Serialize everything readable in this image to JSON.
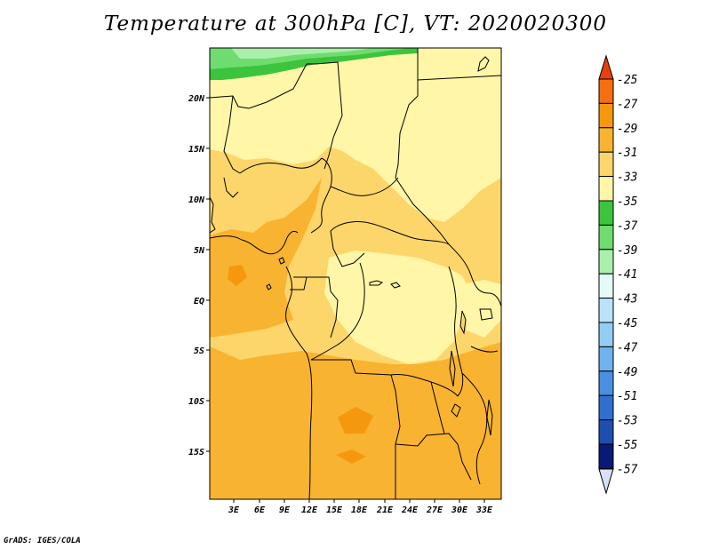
{
  "title": "Temperature at 300hPa [C], VT: 2020020300",
  "credit": "GrADS: IGES/COLA",
  "map": {
    "lat_labels": [
      "20N",
      "15N",
      "10N",
      "5N",
      "EQ",
      "5S",
      "10S",
      "15S"
    ],
    "lon_labels": [
      "3E",
      "6E",
      "9E",
      "12E",
      "15E",
      "18E",
      "21E",
      "24E",
      "27E",
      "30E",
      "33E"
    ]
  },
  "colorbar": {
    "labels": [
      "-25",
      "-27",
      "-29",
      "-31",
      "-33",
      "-35",
      "-37",
      "-39",
      "-41",
      "-43",
      "-45",
      "-47",
      "-49",
      "-51",
      "-53",
      "-55",
      "-57"
    ],
    "colors": {
      "top": "#e8400a",
      "bins": [
        "#f56e12",
        "#f5980e",
        "#f8b330",
        "#fcd66b",
        "#fff6a8",
        "#3cc43c",
        "#6fdc6f",
        "#aaf0aa",
        "#e3fbf7",
        "#b8e3f9",
        "#93cdf4",
        "#6fb3ec",
        "#4a90e0",
        "#2f6fd0",
        "#1e4fb0",
        "#0a1878"
      ],
      "bottom": "#d8e0f8"
    }
  }
}
